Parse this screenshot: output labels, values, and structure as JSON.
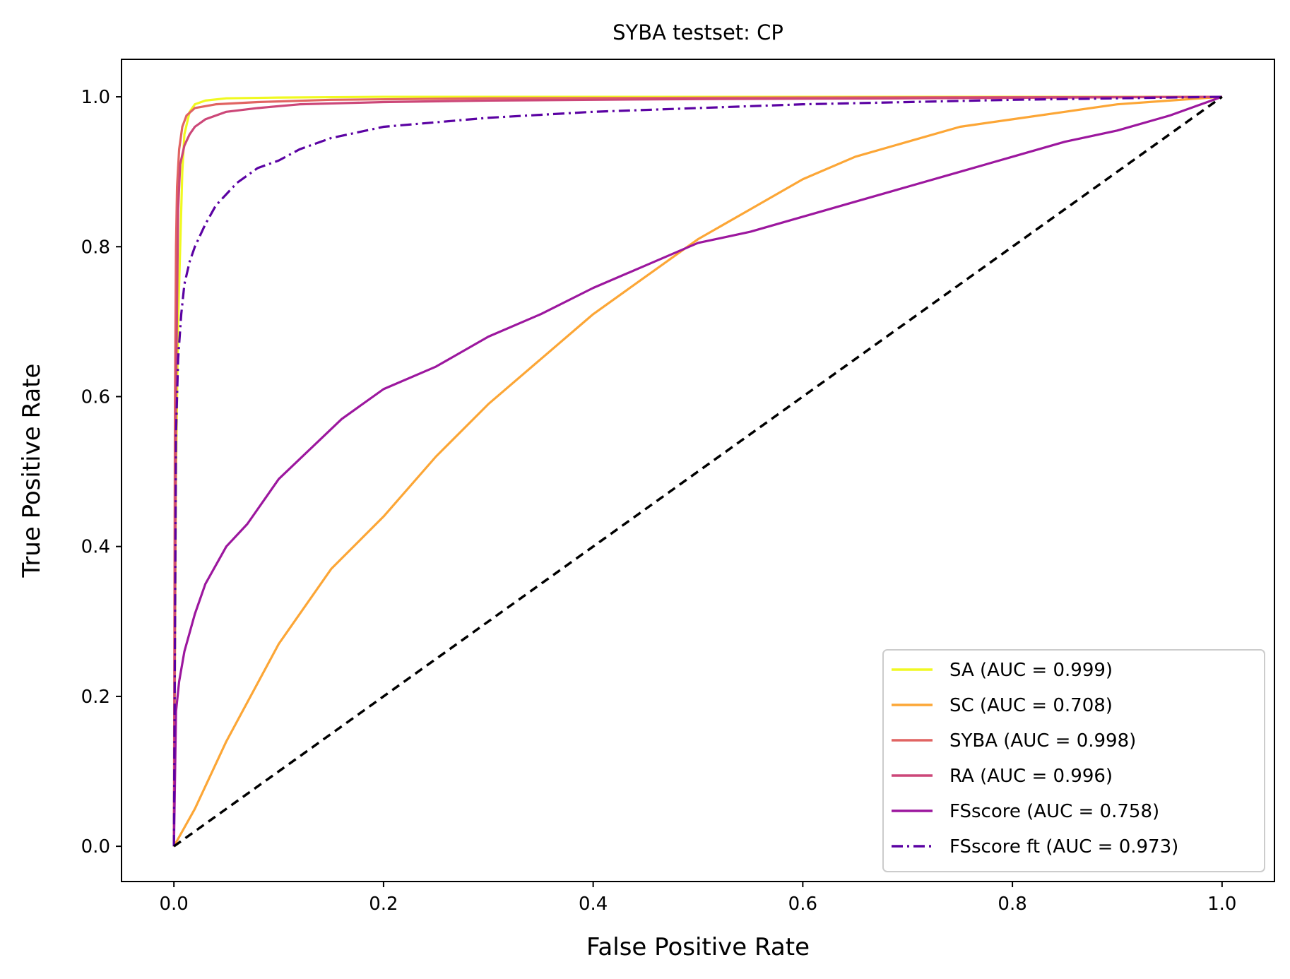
{
  "chart_data": {
    "type": "line",
    "title": "SYBA testset: CP",
    "xlabel": "False Positive Rate",
    "ylabel": "True Positive Rate",
    "xlim": [
      -0.05,
      1.05
    ],
    "ylim": [
      -0.047,
      1.05
    ],
    "xticks": [
      0.0,
      0.2,
      0.4,
      0.6,
      0.8,
      1.0
    ],
    "yticks": [
      0.0,
      0.2,
      0.4,
      0.6,
      0.8,
      1.0
    ],
    "xtick_labels": [
      "0.0",
      "0.2",
      "0.4",
      "0.6",
      "0.8",
      "1.0"
    ],
    "ytick_labels": [
      "0.0",
      "0.2",
      "0.4",
      "0.6",
      "0.8",
      "1.0"
    ],
    "legend_position": "lower-right",
    "series": [
      {
        "name": "SA",
        "label": "SA (AUC = 0.999)",
        "color": "#f0f921",
        "dash": "solid",
        "x": [
          0.0,
          0.002,
          0.004,
          0.006,
          0.008,
          0.01,
          0.015,
          0.02,
          0.03,
          0.05,
          0.1,
          0.2,
          0.5,
          1.0
        ],
        "y": [
          0.0,
          0.5,
          0.7,
          0.8,
          0.9,
          0.95,
          0.98,
          0.99,
          0.995,
          0.998,
          0.999,
          1.0,
          1.0,
          1.0
        ]
      },
      {
        "name": "SC",
        "label": "SC (AUC = 0.708)",
        "color": "#fca636",
        "dash": "solid",
        "x": [
          0.0,
          0.02,
          0.05,
          0.1,
          0.15,
          0.2,
          0.25,
          0.3,
          0.35,
          0.4,
          0.45,
          0.5,
          0.55,
          0.6,
          0.65,
          0.7,
          0.75,
          0.8,
          0.85,
          0.9,
          0.95,
          1.0
        ],
        "y": [
          0.0,
          0.05,
          0.14,
          0.27,
          0.37,
          0.44,
          0.52,
          0.59,
          0.65,
          0.71,
          0.76,
          0.81,
          0.85,
          0.89,
          0.92,
          0.94,
          0.96,
          0.97,
          0.98,
          0.99,
          0.995,
          1.0
        ]
      },
      {
        "name": "SYBA",
        "label": "SYBA (AUC = 0.998)",
        "color": "#e16462",
        "dash": "solid",
        "x": [
          0.0,
          0.001,
          0.002,
          0.003,
          0.005,
          0.008,
          0.012,
          0.02,
          0.04,
          0.08,
          0.15,
          0.3,
          0.6,
          1.0
        ],
        "y": [
          0.0,
          0.6,
          0.8,
          0.88,
          0.93,
          0.96,
          0.975,
          0.985,
          0.99,
          0.993,
          0.996,
          0.998,
          0.999,
          1.0
        ]
      },
      {
        "name": "RA",
        "label": "RA (AUC = 0.996)",
        "color": "#cc4778",
        "dash": "solid",
        "x": [
          0.0,
          0.002,
          0.004,
          0.006,
          0.01,
          0.015,
          0.02,
          0.03,
          0.05,
          0.08,
          0.12,
          0.2,
          0.3,
          0.5,
          0.7,
          1.0
        ],
        "y": [
          0.0,
          0.6,
          0.85,
          0.91,
          0.935,
          0.95,
          0.96,
          0.97,
          0.98,
          0.985,
          0.99,
          0.993,
          0.995,
          0.997,
          0.998,
          1.0
        ]
      },
      {
        "name": "FSscore",
        "label": "FSscore (AUC = 0.758)",
        "color": "#9c179e",
        "dash": "solid",
        "x": [
          0.0,
          0.002,
          0.005,
          0.01,
          0.02,
          0.03,
          0.05,
          0.07,
          0.1,
          0.13,
          0.16,
          0.2,
          0.25,
          0.3,
          0.35,
          0.4,
          0.45,
          0.5,
          0.55,
          0.6,
          0.65,
          0.7,
          0.75,
          0.8,
          0.85,
          0.9,
          0.95,
          1.0
        ],
        "y": [
          0.0,
          0.18,
          0.22,
          0.26,
          0.31,
          0.35,
          0.4,
          0.43,
          0.49,
          0.53,
          0.57,
          0.61,
          0.64,
          0.68,
          0.71,
          0.745,
          0.775,
          0.805,
          0.82,
          0.84,
          0.86,
          0.88,
          0.9,
          0.92,
          0.94,
          0.955,
          0.975,
          1.0
        ]
      },
      {
        "name": "FSscore ft",
        "label": "FSscore ft (AUC = 0.973)",
        "color": "#5b02a3",
        "dash": "dashdot",
        "x": [
          0.0,
          0.002,
          0.004,
          0.007,
          0.01,
          0.015,
          0.02,
          0.03,
          0.04,
          0.05,
          0.06,
          0.08,
          0.1,
          0.12,
          0.15,
          0.2,
          0.25,
          0.3,
          0.4,
          0.5,
          0.6,
          0.7,
          0.8,
          0.9,
          1.0
        ],
        "y": [
          0.0,
          0.55,
          0.65,
          0.71,
          0.75,
          0.78,
          0.8,
          0.83,
          0.855,
          0.87,
          0.885,
          0.905,
          0.915,
          0.93,
          0.945,
          0.96,
          0.966,
          0.972,
          0.98,
          0.985,
          0.99,
          0.993,
          0.996,
          0.998,
          1.0
        ]
      },
      {
        "name": "chance",
        "label": "",
        "color": "#000000",
        "dash": "dashed",
        "x": [
          0.0,
          1.0
        ],
        "y": [
          0.0,
          1.0
        ]
      }
    ]
  }
}
